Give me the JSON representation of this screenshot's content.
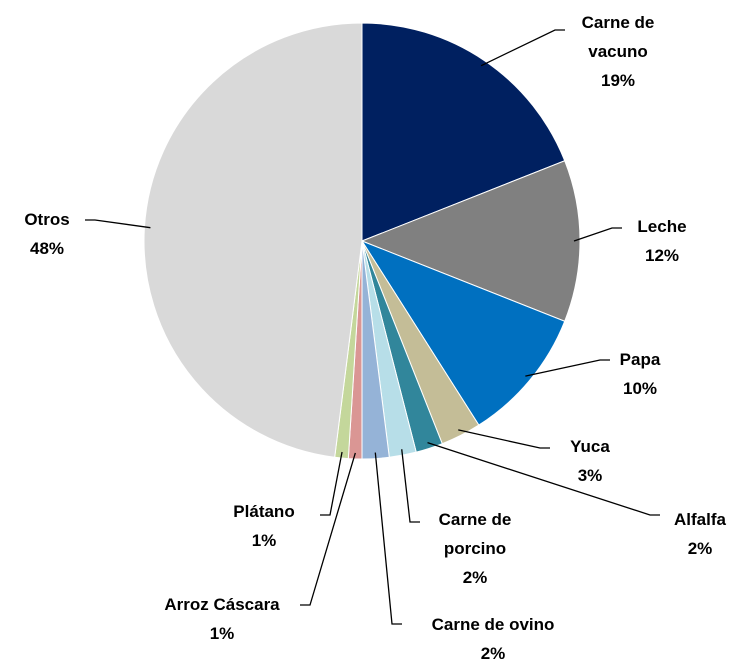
{
  "chart_data": {
    "type": "pie",
    "categories": [
      "Carne de vacuno",
      "Leche",
      "Papa",
      "Yuca",
      "Alfalfa",
      "Carne de porcino",
      "Carne de ovino",
      "Arroz Cáscara",
      "Plátano",
      "Otros"
    ],
    "values": [
      19,
      12,
      10,
      3,
      2,
      2,
      2,
      1,
      1,
      48
    ],
    "value_labels": [
      "19%",
      "12%",
      "10%",
      "3%",
      "2%",
      "2%",
      "2%",
      "1%",
      "1%",
      "48%"
    ],
    "colors": [
      "#002060",
      "#808080",
      "#0070c0",
      "#c4bd97",
      "#31869b",
      "#b7dee8",
      "#95b3d7",
      "#da9694",
      "#c4d79b",
      "#d9d9d9"
    ]
  }
}
